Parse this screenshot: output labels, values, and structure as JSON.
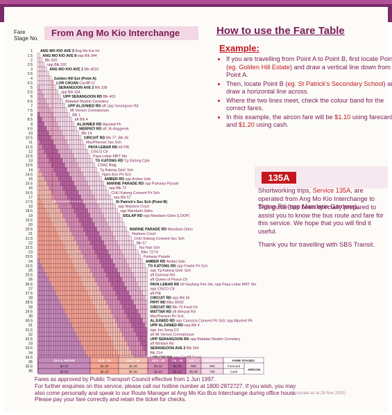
{
  "colors": {
    "plum": "#7a1b55",
    "red": "#c4161c",
    "band_dark": "#7a2a6a"
  },
  "header": {
    "fare_label": "Fare",
    "stage_label": "Stage No.",
    "title": "From Ang Mo Kio Interchange"
  },
  "stage_numbers": [
    "1",
    "1.5",
    "2",
    "2.5",
    "3",
    "3.5",
    "4",
    "4.5",
    "5",
    "5.5",
    "6",
    "6.5",
    "7",
    "7.5",
    "8",
    "8.5",
    "9",
    "9.5",
    "10",
    "10.5",
    "11",
    "11.5",
    "12",
    "12.5",
    "13",
    "13.5",
    "14",
    "14.5",
    "15",
    "15.5",
    "16",
    "16.5",
    "17",
    "17.5",
    "18",
    "18.5",
    "19",
    "19.5",
    "20",
    "20.5",
    "21",
    "21.5",
    "22",
    "22.5",
    "23",
    "23.5",
    "24",
    "24.5",
    "25",
    "25.5",
    "26",
    "26.5",
    "27",
    "27.5",
    "28",
    "28.5",
    "29",
    "29.5",
    "30",
    "30.5",
    "31",
    "31.5",
    "32",
    "32.5",
    "33",
    "33.5",
    "34",
    "34.5",
    "35",
    "35.5",
    "36"
  ],
  "stops": [
    {
      "road": "ANG MO KIO AVE 3",
      "desc": "Ang Mo Kio Int"
    },
    {
      "road": "ANG MO KIO AVE 8",
      "desc": "opp Blk 344"
    },
    {
      "road": "",
      "desc": "Blk 420"
    },
    {
      "road": "",
      "desc": "opp Blk 332"
    },
    {
      "road": "ANG MO KIO AVE 1",
      "desc": "Blk 4016"
    },
    {
      "road": "",
      "desc": ""
    },
    {
      "road": "Golden Hill Est (Point A)",
      "desc": ""
    },
    {
      "road": "LOR CHUAN",
      "desc": "Cardiff Ct"
    },
    {
      "road": "SERANGOON AVE 2",
      "desc": "Blk 238"
    },
    {
      "road": "",
      "desc": "opp Blk 334"
    },
    {
      "road": "UPP SERANGOON RD",
      "desc": "Blk 403"
    },
    {
      "road": "",
      "desc": "Bidadari Muslim Cemetery"
    },
    {
      "road": "UPP ALJUNIED RD",
      "desc": "aft Upp Serangoon Rd"
    },
    {
      "road": "",
      "desc": "Mt Vernon Crematorium"
    },
    {
      "road": "",
      "desc": "Blk 1"
    },
    {
      "road": "",
      "desc": "aft Blk 4"
    },
    {
      "road": "ALJUNIED RD",
      "desc": "Aljunied Pk"
    },
    {
      "road": "MERPATI RD",
      "desc": "aft Jln Anggerek"
    },
    {
      "road": "",
      "desc": "Blk 14"
    },
    {
      "road": "CIRCUIT RD",
      "desc": "Blk 77, Blk 36"
    },
    {
      "road": "",
      "desc": "MacPherson Sec Sch"
    },
    {
      "road": "PAYA LEBAR RD",
      "desc": "b/f PIE"
    },
    {
      "road": "",
      "desc": "CISCO Ctr"
    },
    {
      "road": "",
      "desc": "Paya Lebar MRT Stn"
    },
    {
      "road": "TG KATONG RD",
      "desc": "Tg Katong Cplx"
    },
    {
      "road": "",
      "desc": "CDAC Bldg"
    },
    {
      "road": "",
      "desc": "Tg Katong Girls' Sch"
    },
    {
      "road": "",
      "desc": "Ngee Ann Pri Sch"
    },
    {
      "road": "AMBER RD",
      "desc": "opp Amber Gdn"
    },
    {
      "road": "MARINE PARADE RD",
      "desc": "opp Parkway Parade"
    },
    {
      "road": "",
      "desc": "opp Blk 72"
    },
    {
      "road": "",
      "desc": "CHIJ Katong Convent Pri Sch"
    },
    {
      "road": "",
      "desc": "opp Blk 57"
    },
    {
      "road": "St Patrick's Sec Sch (Point B)",
      "desc": ""
    },
    {
      "road": "",
      "desc": "opp Neptune Court"
    },
    {
      "road": "",
      "desc": "opp Mandarin Gdns"
    },
    {
      "road": "SIGLAP RD",
      "desc": "opp Mandarin Gdns (LOOP)"
    },
    {
      "road": "",
      "desc": ""
    },
    {
      "road": "",
      "desc": ""
    },
    {
      "road": "MARINE PARADE RD",
      "desc": "Mandarin Gdns"
    },
    {
      "road": "",
      "desc": "Neptune Court"
    },
    {
      "road": "",
      "desc": "CHIJ Katong Convent Sec Sch"
    },
    {
      "road": "",
      "desc": "Blk 57"
    },
    {
      "road": "",
      "desc": "Tao Nan Sch"
    },
    {
      "road": "",
      "desc": "Blks 72/74"
    },
    {
      "road": "",
      "desc": "Parkway Parade"
    },
    {
      "road": "AMBER RD",
      "desc": "Amber Gdn"
    },
    {
      "road": "TG KATONG RD",
      "desc": "opp Fowlie Pri Sch"
    },
    {
      "road": "",
      "desc": "opp Tg Katong Girls' Sch"
    },
    {
      "road": "",
      "desc": "aft Dunman Rd"
    },
    {
      "road": "",
      "desc": "aft Queen of Peace Ch"
    },
    {
      "road": "PAYA LEBAR RD",
      "desc": "b/f Geylang Fire Stn, opp Paya Lebar MRT Stn"
    },
    {
      "road": "",
      "desc": "opp CISCO Ctr"
    },
    {
      "road": "",
      "desc": "aft PIE"
    },
    {
      "road": "CIRCUIT RD",
      "desc": "opp Blk 56"
    },
    {
      "road": "PIPIT RD",
      "desc": "Blks 90/92"
    },
    {
      "road": "CIRCUIT RD",
      "desc": "Blk 79 Food Ctr"
    },
    {
      "road": "MATTAR RD",
      "desc": "aft Merpati Rd"
    },
    {
      "road": "",
      "desc": "MacPherson Pri Sch"
    },
    {
      "road": "ALJUNIED RD",
      "desc": "opp Canossa Convent Pri Sch; opp Aljunied Pk"
    },
    {
      "road": "UPP ALJUNIED RD",
      "desc": "opp Blk 4"
    },
    {
      "road": "",
      "desc": "opp Joo Seng CC"
    },
    {
      "road": "",
      "desc": "aft Mt Vernon Crematorium"
    },
    {
      "road": "UPP SERANGOON RD",
      "desc": "opp Bidadari Muslim Cemetery"
    },
    {
      "road": "",
      "desc": "aft Wolskel Rd"
    },
    {
      "road": "SERANGOON AVE 2",
      "desc": "Blk 334"
    },
    {
      "road": "",
      "desc": "Blk 214"
    },
    {
      "road": "LOR CHUAN",
      "desc": "opp Cardiff Court"
    },
    {
      "road": "ANG MO KIO AVE 1",
      "desc": "opp Golden Hill Est"
    },
    {
      "road": "",
      "desc": ""
    },
    {
      "road": "",
      "desc": "opp Blk 4016"
    },
    {
      "road": "ANG MO KIO AVE 8",
      "desc": "Blk 332"
    },
    {
      "road": "",
      "desc": "Blk 354"
    },
    {
      "road": "",
      "desc": "Blk 346"
    },
    {
      "road": "ANG MO KIO AVE 3",
      "desc": "Ang Mo Kio Int"
    }
  ],
  "fare_legend": {
    "stage_labels": [
      "23.5 & ABOVE",
      "16.5 - 23",
      "13.5 - 16",
      "10.5 - 13",
      "7.5 - 10",
      "4.5 - 7",
      "4 & BELOW"
    ],
    "farecard": [
      "$1.40",
      "$1.30",
      "$1.20",
      "$1.10",
      "$1.00",
      "90¢",
      "60¢"
    ],
    "cash": [
      "$1.50",
      "$1.40",
      "$1.30",
      "$1.20",
      "$1.10",
      "$1.00",
      "70¢"
    ],
    "header_fare_stages": "FARE STAGES",
    "header_aircon": "AIRCON",
    "row_farecard": "Farecard",
    "row_cash": "Cash"
  },
  "howto": {
    "title": "How to use the Fare Table",
    "example": "Example:",
    "b1_pre": "If you are travelling from Point A to Point B, first locate Point A (",
    "b1_hl": "eg. Golden Hill Estate",
    "b1_post": ") and draw a vertical line down from Point A.",
    "b2_pre": "Then, locate Point B (",
    "b2_hl": "eg. St Patrick's Secondary School",
    "b2_post": ") and draw a horizontal line across.",
    "b3": "Where the two lines meet, check the colour band for the correct fares.",
    "b4_pre": "In this example, the aircon fare will be ",
    "b4_hl1": "$1.10",
    "b4_mid": " using farecard and ",
    "b4_hl2": "$1.20",
    "b4_post": " using cash."
  },
  "route": {
    "badge": "135A",
    "short_pre": "Shortworking trips, ",
    "short_hl": "Service 135A",
    "short_post": ", are operated from Ang Mo Kio Interchange to Siglap Rd (opp Mandarin Gardens).",
    "guide": "This guide has been specially prepared to assist you to know the bus route and fare for this service. We hope that you will find it useful.",
    "thanks": "Thank you for travelling with SBS Transit."
  },
  "footer": {
    "line1": "Fares as approved by Public Transport Council effective from 1 Jun 1997.",
    "line2": "For further enquiries on this service, please call our hotline number at 1800-2872727. If you wish, you may also come personally and speak to our Route Manager at Ang Mo Kio Bus Interchange during office hours.",
    "line3": "Please pay your fare correctly and retain the ticket for checks.",
    "accurate": "(Accurate as at 28 Nov 2001)"
  }
}
